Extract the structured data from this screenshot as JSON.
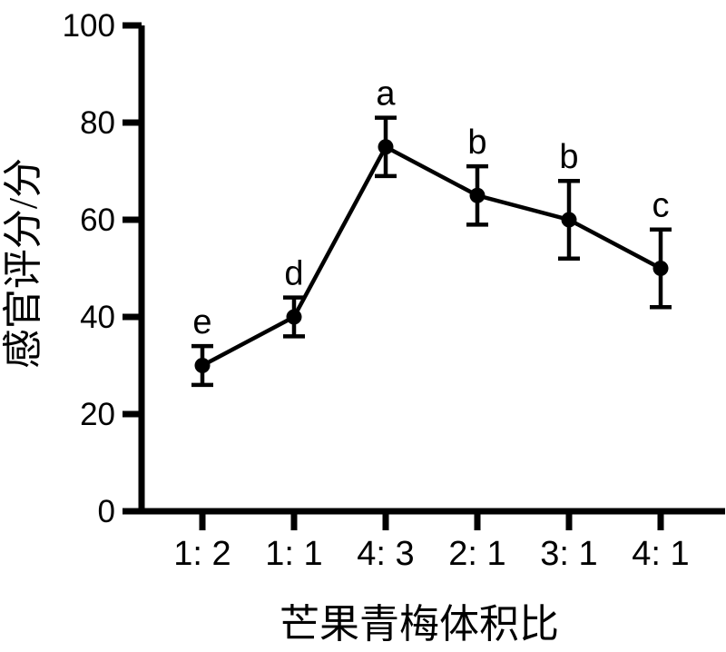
{
  "figure": {
    "background": "#ffffff",
    "ink_color": "#000000"
  },
  "chart_data": {
    "type": "line",
    "title": "",
    "categories": [
      "1: 2",
      "1: 1",
      "4: 3",
      "2: 1",
      "3: 1",
      "4: 1"
    ],
    "values": [
      30,
      40,
      75,
      65,
      60,
      50
    ],
    "errors": [
      4,
      4,
      6,
      6,
      8,
      8
    ],
    "point_labels": [
      "e",
      "d",
      "a",
      "b",
      "b",
      "c"
    ],
    "xlabel": "芒果青梅体积比",
    "ylabel": "感官评分/分",
    "ylim": [
      0,
      100
    ],
    "yticks": [
      0,
      20,
      40,
      60,
      80,
      100
    ],
    "grid": false,
    "legend": "none",
    "marker": "filled-circle",
    "line_style": "solid",
    "error_bars": "symmetric-with-caps"
  }
}
